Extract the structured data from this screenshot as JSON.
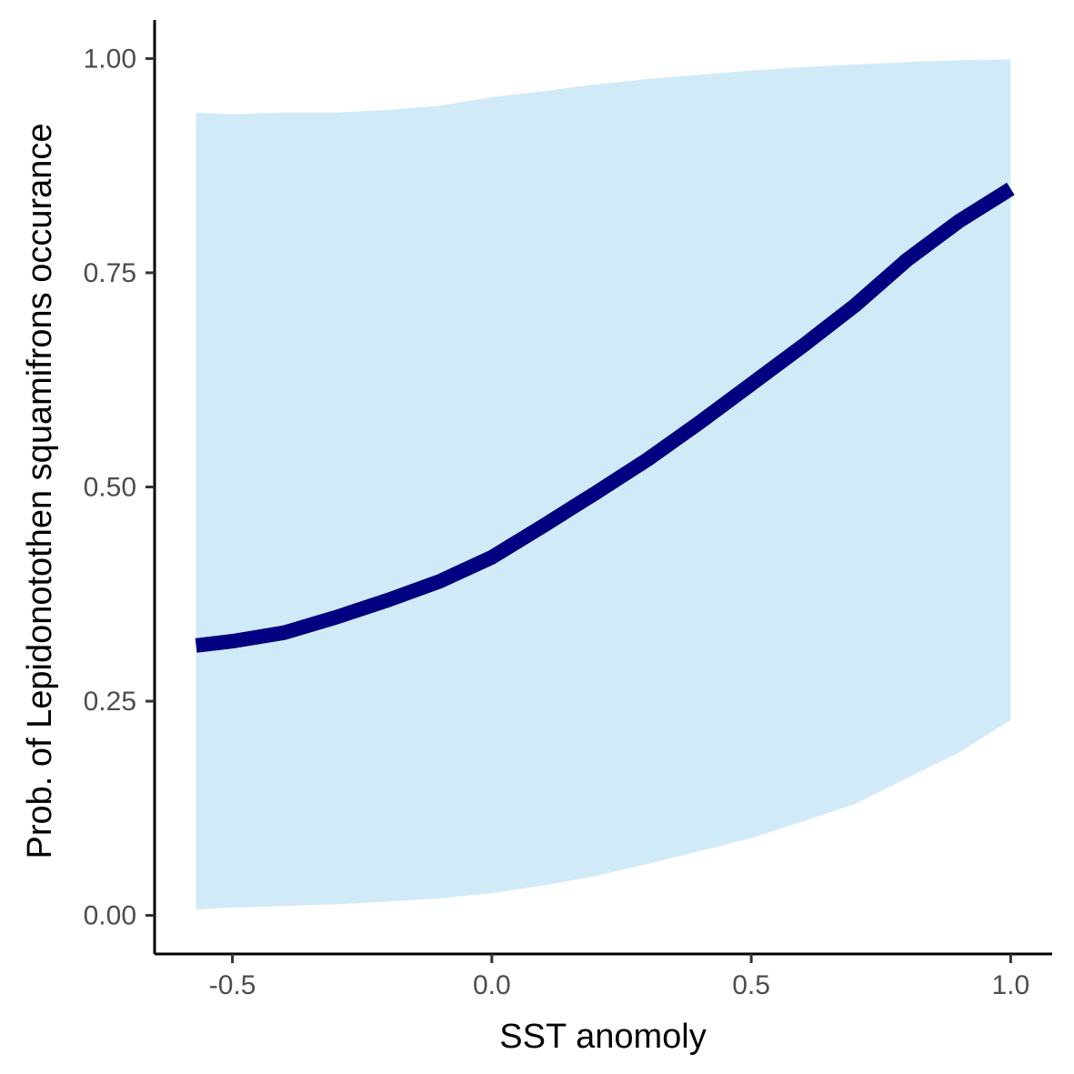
{
  "chart_data": {
    "type": "line",
    "title": "",
    "xlabel": "SST anomoly",
    "ylabel": "Prob. of  Lepidonotothen squamifrons  occurance",
    "xlim": [
      -0.65,
      1.08
    ],
    "ylim": [
      -0.045,
      1.045
    ],
    "x_ticks": [
      -0.5,
      0.0,
      0.5,
      1.0
    ],
    "x_tick_labels": [
      "-0.5",
      "0.0",
      "0.5",
      "1.0"
    ],
    "y_ticks": [
      0.0,
      0.25,
      0.5,
      0.75,
      1.0
    ],
    "y_tick_labels": [
      "0.00",
      "0.25",
      "0.50",
      "0.75",
      "1.00"
    ],
    "grid": false,
    "legend": "none",
    "series": [
      {
        "x": [
          -0.57,
          -0.5,
          -0.4,
          -0.3,
          -0.2,
          -0.1,
          0.0,
          0.1,
          0.2,
          0.3,
          0.4,
          0.5,
          0.6,
          0.7,
          0.8,
          0.9,
          1.0
        ],
        "y": [
          0.315,
          0.32,
          0.33,
          0.348,
          0.368,
          0.39,
          0.418,
          0.455,
          0.493,
          0.532,
          0.575,
          0.62,
          0.665,
          0.712,
          0.765,
          0.81,
          0.848
        ],
        "lower": [
          0.007,
          0.009,
          0.011,
          0.013,
          0.016,
          0.02,
          0.026,
          0.035,
          0.046,
          0.06,
          0.075,
          0.09,
          0.11,
          0.13,
          0.16,
          0.19,
          0.228
        ],
        "upper": [
          0.937,
          0.935,
          0.937,
          0.937,
          0.94,
          0.945,
          0.955,
          0.962,
          0.97,
          0.976,
          0.981,
          0.986,
          0.99,
          0.993,
          0.996,
          0.998,
          0.999
        ]
      }
    ],
    "colors": {
      "line": "#000080",
      "band": "#d1eaf7",
      "axis": "#000000",
      "tick_text": "#4d4d4d"
    }
  }
}
